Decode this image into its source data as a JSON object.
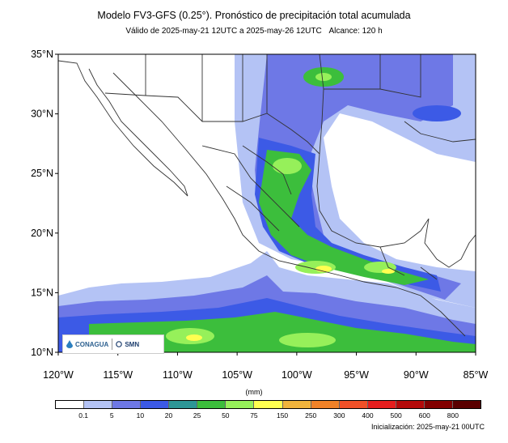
{
  "title": "Modelo FV3-GFS (0.25°). Pronóstico de precipitación total acumulada",
  "subtitle_valid": "Válido de 2025-may-21 12UTC a 2025-may-26 12UTC",
  "subtitle_range": "Alcance: 120 h",
  "lat_labels": [
    "35°N",
    "30°N",
    "25°N",
    "20°N",
    "15°N",
    "10°N"
  ],
  "lon_labels": [
    "120°W",
    "115°W",
    "110°W",
    "105°W",
    "100°W",
    "95°W",
    "90°W",
    "85°W"
  ],
  "units": "(mm)",
  "colorbar": {
    "ticks": [
      "0.1",
      "5",
      "10",
      "20",
      "25",
      "50",
      "75",
      "150",
      "250",
      "300",
      "400",
      "500",
      "600",
      "800"
    ],
    "colors": [
      "#ffffff",
      "#b4c3f5",
      "#6e78e6",
      "#3c5ae6",
      "#2d9696",
      "#3cbe3c",
      "#96f05a",
      "#ffff50",
      "#f0b43c",
      "#f08228",
      "#f05028",
      "#e61e1e",
      "#b40a0a",
      "#820000",
      "#5a0000"
    ]
  },
  "logos": {
    "conagua": "CONAGUA",
    "smn": "SMN"
  },
  "init_text": "Inicialización: 2025-may-21 00UTC"
}
